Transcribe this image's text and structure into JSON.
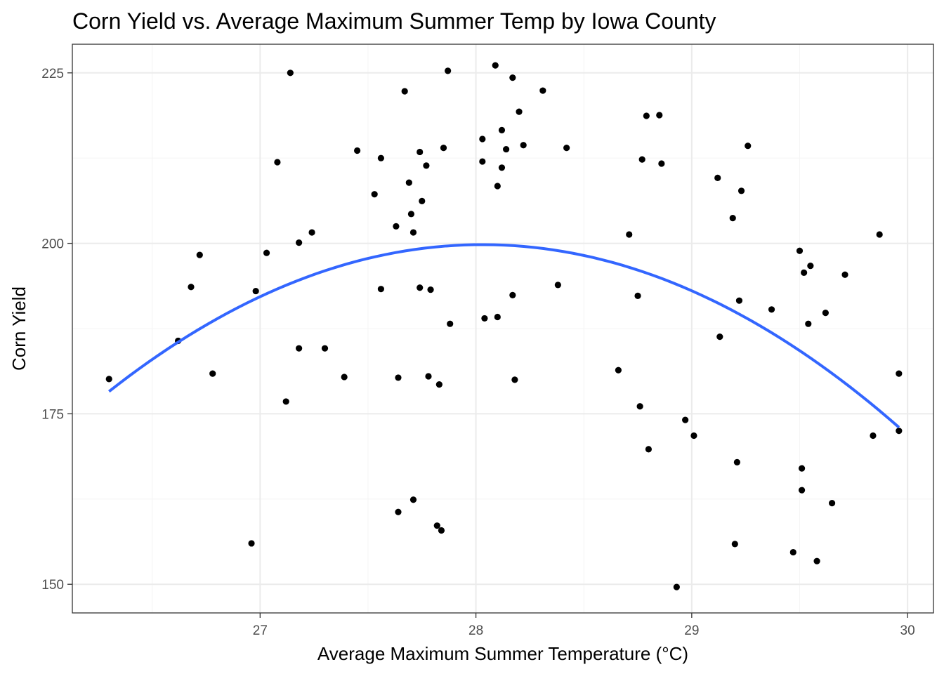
{
  "chart_data": {
    "type": "scatter",
    "title": "Corn Yield vs. Average Maximum Summer Temp by Iowa County",
    "xlabel": "Average Maximum Summer Temperature (°C)",
    "ylabel": "Corn Yield",
    "xlim": [
      26.13,
      30.12
    ],
    "ylim": [
      145.8,
      229.2
    ],
    "x_ticks": [
      27,
      28,
      29,
      30
    ],
    "x_tick_labels": [
      "27",
      "28",
      "29",
      "30"
    ],
    "y_ticks": [
      150,
      175,
      200,
      225
    ],
    "y_tick_labels": [
      "150",
      "175",
      "200",
      "225"
    ],
    "grid": true,
    "theme": "bw",
    "points": [
      [
        26.3,
        180.1
      ],
      [
        26.62,
        185.7
      ],
      [
        26.68,
        193.6
      ],
      [
        26.72,
        198.3
      ],
      [
        26.78,
        180.9
      ],
      [
        26.96,
        156.0
      ],
      [
        26.98,
        193.0
      ],
      [
        27.03,
        198.6
      ],
      [
        27.08,
        211.9
      ],
      [
        27.12,
        176.8
      ],
      [
        27.14,
        225.0
      ],
      [
        27.18,
        184.6
      ],
      [
        27.18,
        200.1
      ],
      [
        27.24,
        201.6
      ],
      [
        27.3,
        184.6
      ],
      [
        27.39,
        180.4
      ],
      [
        27.45,
        213.6
      ],
      [
        27.53,
        207.2
      ],
      [
        27.56,
        212.5
      ],
      [
        27.56,
        193.3
      ],
      [
        27.63,
        202.5
      ],
      [
        27.64,
        180.3
      ],
      [
        27.64,
        160.6
      ],
      [
        27.67,
        222.3
      ],
      [
        27.69,
        208.9
      ],
      [
        27.7,
        204.3
      ],
      [
        27.71,
        162.4
      ],
      [
        27.71,
        201.6
      ],
      [
        27.74,
        193.5
      ],
      [
        27.74,
        213.4
      ],
      [
        27.75,
        206.2
      ],
      [
        27.77,
        211.4
      ],
      [
        27.78,
        180.5
      ],
      [
        27.79,
        193.2
      ],
      [
        27.82,
        158.6
      ],
      [
        27.83,
        179.3
      ],
      [
        27.84,
        157.9
      ],
      [
        27.85,
        214.0
      ],
      [
        27.87,
        225.3
      ],
      [
        27.88,
        188.2
      ],
      [
        28.03,
        215.3
      ],
      [
        28.03,
        212.0
      ],
      [
        28.04,
        189.0
      ],
      [
        28.09,
        226.1
      ],
      [
        28.1,
        208.4
      ],
      [
        28.1,
        189.2
      ],
      [
        28.12,
        216.6
      ],
      [
        28.12,
        211.1
      ],
      [
        28.14,
        213.8
      ],
      [
        28.17,
        224.3
      ],
      [
        28.17,
        192.4
      ],
      [
        28.18,
        180.0
      ],
      [
        28.2,
        219.3
      ],
      [
        28.22,
        214.4
      ],
      [
        28.31,
        222.4
      ],
      [
        28.38,
        193.9
      ],
      [
        28.42,
        214.0
      ],
      [
        28.66,
        181.4
      ],
      [
        28.71,
        201.3
      ],
      [
        28.75,
        192.3
      ],
      [
        28.76,
        176.1
      ],
      [
        28.77,
        212.3
      ],
      [
        28.79,
        218.7
      ],
      [
        28.8,
        169.8
      ],
      [
        28.85,
        218.8
      ],
      [
        28.86,
        211.7
      ],
      [
        28.93,
        149.6
      ],
      [
        28.97,
        174.1
      ],
      [
        29.01,
        171.8
      ],
      [
        29.12,
        209.6
      ],
      [
        29.13,
        186.3
      ],
      [
        29.19,
        203.7
      ],
      [
        29.2,
        155.9
      ],
      [
        29.21,
        167.9
      ],
      [
        29.22,
        191.6
      ],
      [
        29.23,
        207.7
      ],
      [
        29.26,
        214.3
      ],
      [
        29.37,
        190.3
      ],
      [
        29.47,
        154.7
      ],
      [
        29.5,
        198.9
      ],
      [
        29.51,
        163.8
      ],
      [
        29.51,
        167.0
      ],
      [
        29.52,
        195.7
      ],
      [
        29.54,
        188.2
      ],
      [
        29.55,
        196.7
      ],
      [
        29.58,
        153.4
      ],
      [
        29.62,
        189.8
      ],
      [
        29.65,
        161.9
      ],
      [
        29.71,
        195.4
      ],
      [
        29.84,
        171.8
      ],
      [
        29.87,
        201.3
      ],
      [
        29.96,
        180.9
      ],
      [
        29.96,
        172.5
      ]
    ],
    "fit_line": {
      "method": "quadratic",
      "x": [
        26.3,
        26.6,
        26.9,
        27.2,
        27.5,
        27.8,
        28.1,
        28.4,
        28.7,
        29.0,
        29.3,
        29.6,
        29.96
      ],
      "y": [
        178.5,
        185.2,
        190.5,
        194.6,
        197.6,
        199.3,
        199.8,
        198.9,
        196.7,
        193.2,
        188.4,
        182.3,
        172.6
      ],
      "color": "#3366FF"
    },
    "colors": {
      "points": "#000000",
      "background": "#FFFFFF",
      "panel_border": "#333333",
      "grid_major": "#EBEBEB",
      "grid_minor": "#F5F5F5",
      "tick_label": "#4D4D4D"
    }
  }
}
